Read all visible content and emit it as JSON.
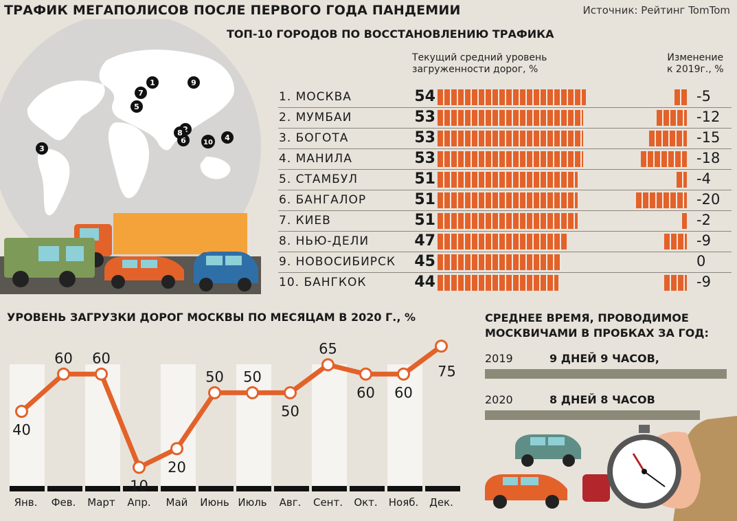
{
  "header": {
    "title": "ТРАФИК МЕГАПОЛИСОВ ПОСЛЕ ПЕРВОГО ГОДА ПАНДЕМИИ",
    "source": "Источник: Рейтинг TomTom"
  },
  "map_markers": [
    "1",
    "2",
    "3",
    "4",
    "5",
    "6",
    "7",
    "8",
    "9",
    "10"
  ],
  "top10": {
    "title": "ТОП-10 ГОРОДОВ ПО ВОССТАНОВЛЕНИЮ ТРАФИКА",
    "col_current": "Текущий средний уровень загруженности дорог, %",
    "col_current_l1": "Текущий средний уровень",
    "col_current_l2": "загруженности дорог, %",
    "col_change_l1": "Изменение",
    "col_change_l2": "к 2019г., %",
    "rows": [
      {
        "city": "1. МОСКВА",
        "value": "54",
        "change": "-5"
      },
      {
        "city": "2. МУМБАИ",
        "value": "53",
        "change": "-12"
      },
      {
        "city": "3. БОГОТА",
        "value": "53",
        "change": "-15"
      },
      {
        "city": "4. МАНИЛА",
        "value": "53",
        "change": "-18"
      },
      {
        "city": "5. СТАМБУЛ",
        "value": "51",
        "change": "-4"
      },
      {
        "city": "6. БАНГАЛОР",
        "value": "51",
        "change": "-20"
      },
      {
        "city": "7. КИЕВ",
        "value": "51",
        "change": "-2"
      },
      {
        "city": "8. НЬЮ-ДЕЛИ",
        "value": "47",
        "change": "-9"
      },
      {
        "city": "9. НОВОСИБИРСК",
        "value": "45",
        "change": "0"
      },
      {
        "city": "10. БАНГКОК",
        "value": "44",
        "change": "-9"
      }
    ]
  },
  "chart_data": {
    "type": "line",
    "title": "УРОВЕНЬ ЗАГРУЗКИ ДОРОГ МОСКВЫ ПО МЕСЯЦАМ В 2020 Г., %",
    "categories": [
      "Янв.",
      "Фев.",
      "Март",
      "Апр.",
      "Май",
      "Июнь",
      "Июль",
      "Авг.",
      "Сент.",
      "Окт.",
      "Нояб.",
      "Дек."
    ],
    "values": [
      40,
      60,
      60,
      10,
      20,
      50,
      50,
      50,
      65,
      60,
      60,
      75
    ],
    "ylim": [
      0,
      80
    ],
    "colors": {
      "line": "#e2622a",
      "bar_fill": "#f6f4f0",
      "axis": "#111111"
    }
  },
  "time_in_traffic": {
    "title_l1": "СРЕДНЕЕ ВРЕМЯ, ПРОВОДИМОЕ",
    "title_l2": "МОСКВИЧАМИ В ПРОБКАХ ЗА ГОД:",
    "rows": [
      {
        "year": "2019",
        "text": "9 ДНЕЙ 9 ЧАСОВ,",
        "hours": 225
      },
      {
        "year": "2020",
        "text": "8 ДНЕЙ 8 ЧАСОВ",
        "hours": 200
      }
    ]
  },
  "colors": {
    "accent": "#e2622a",
    "background": "#e7e3db",
    "globe": "#d9d8d6",
    "bar_grey": "#8b8a78"
  }
}
